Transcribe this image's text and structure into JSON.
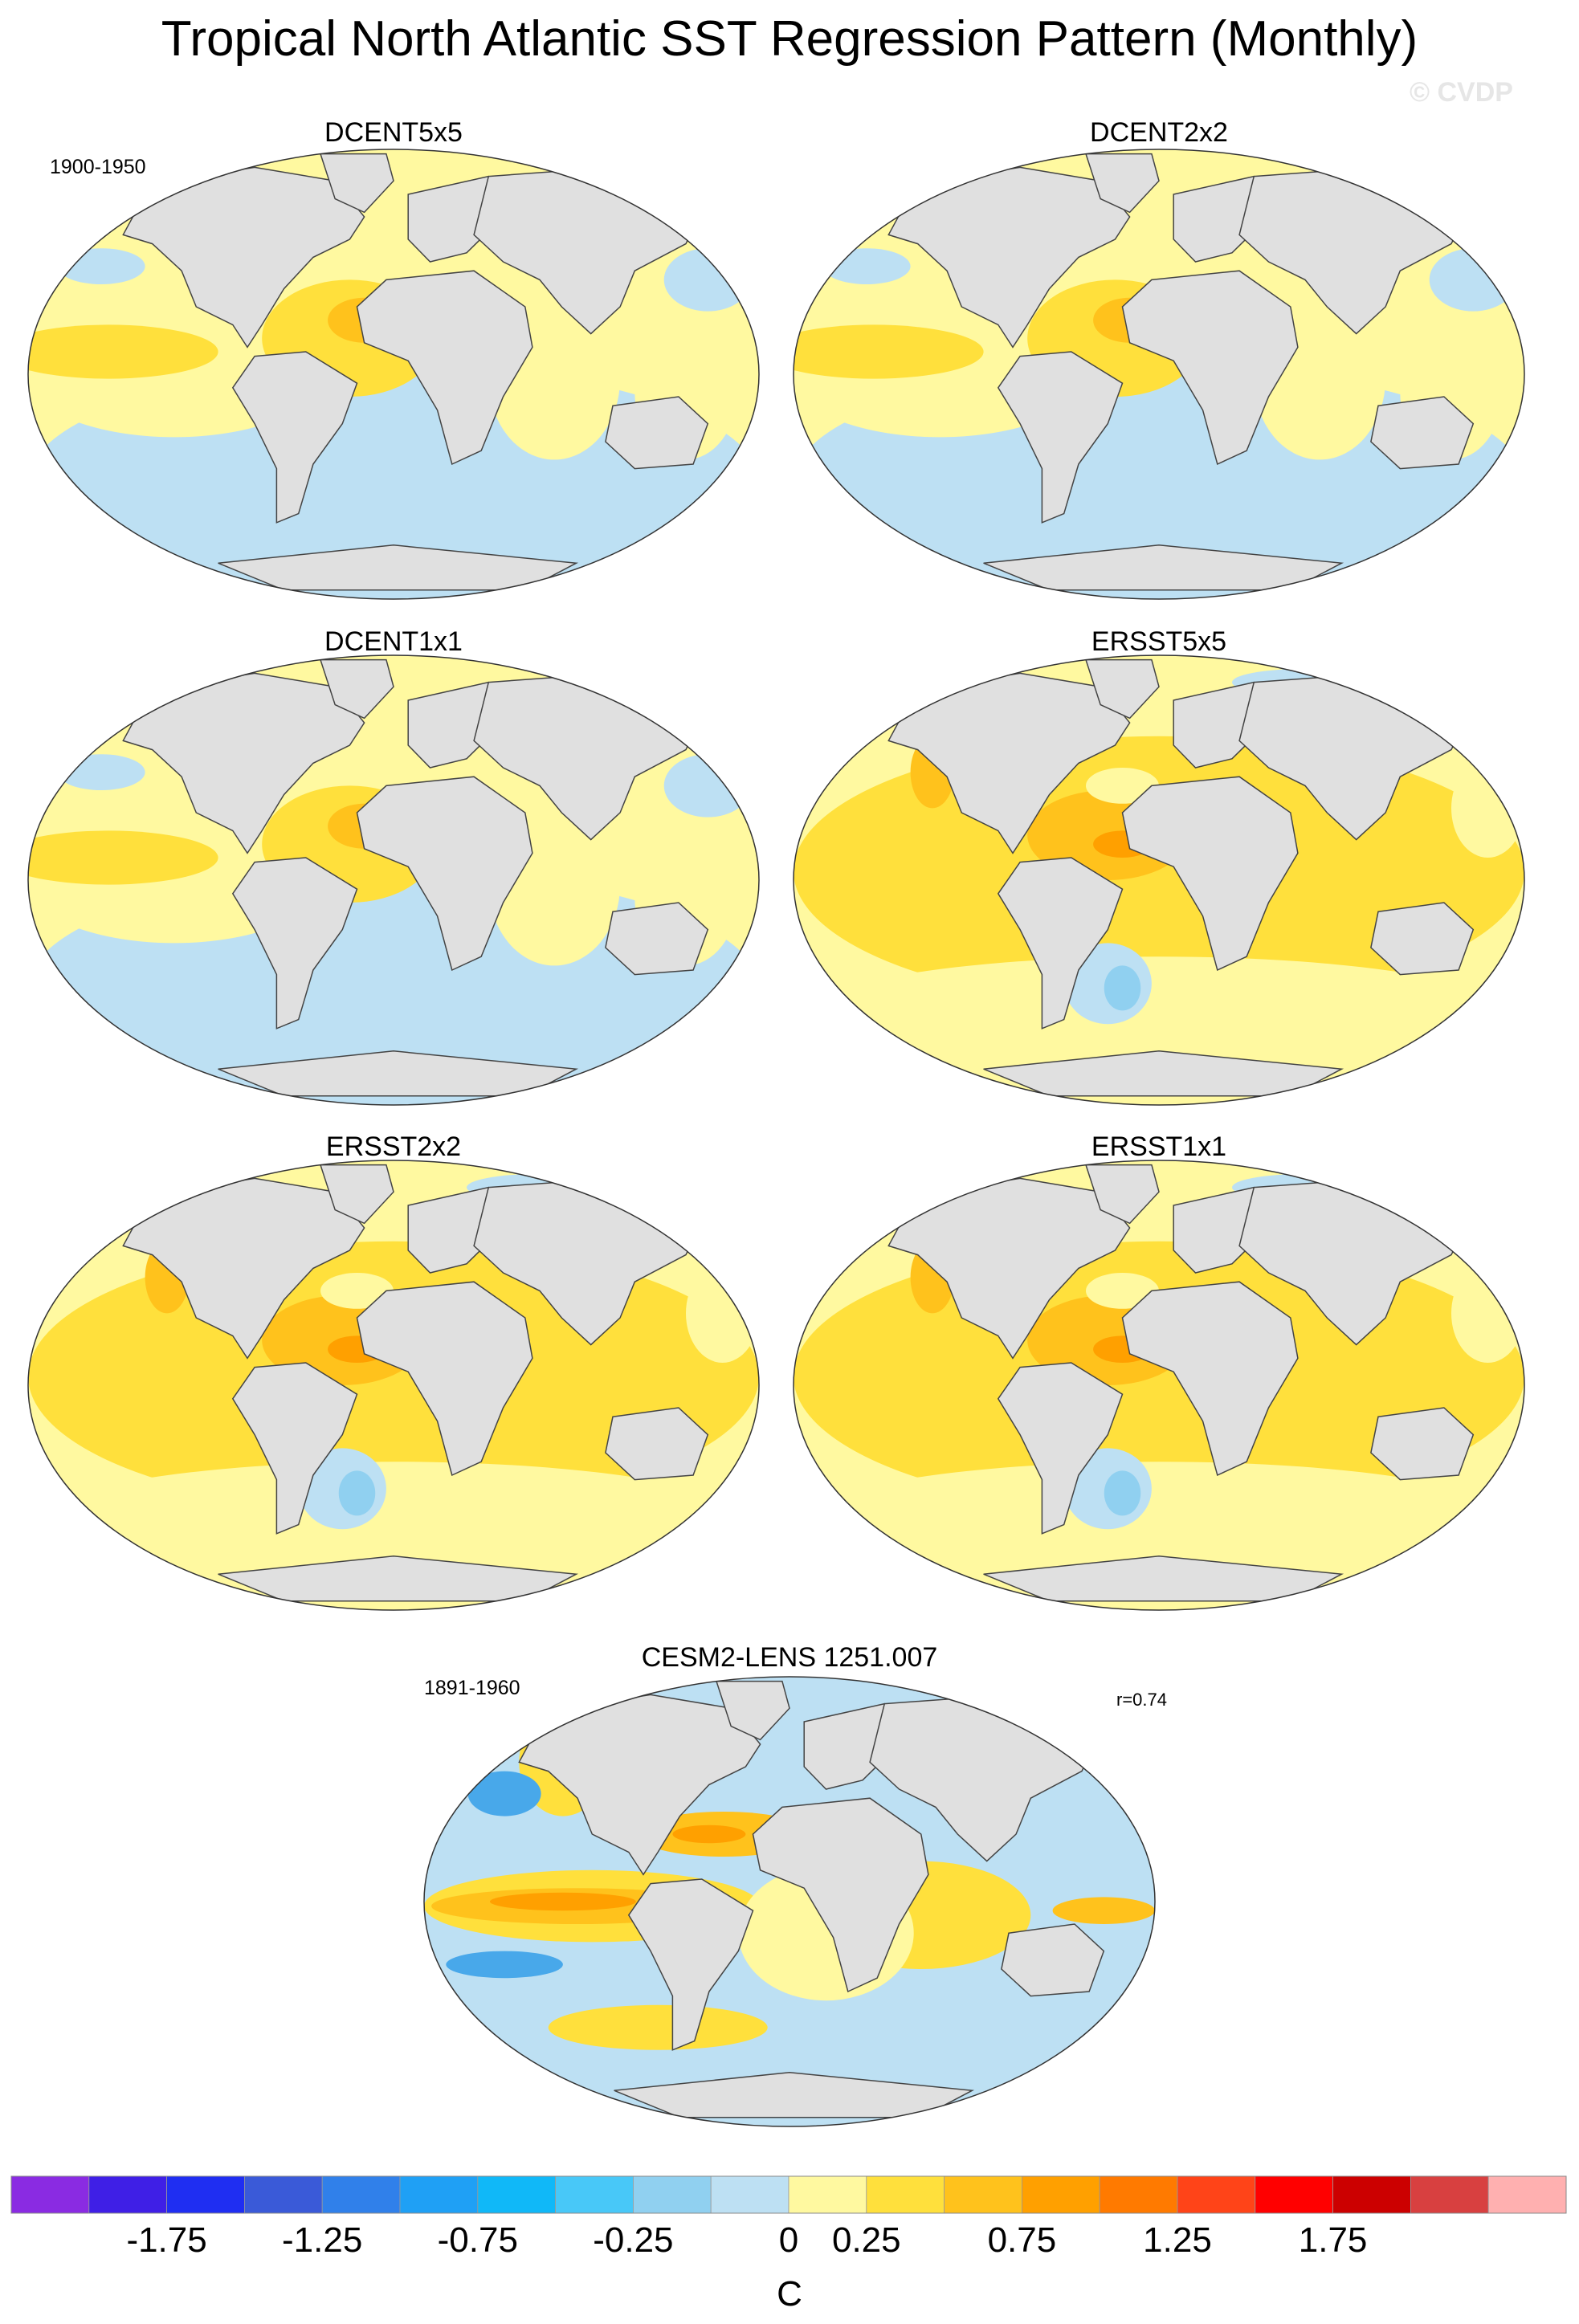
{
  "title": "Tropical North Atlantic SST Regression Pattern (Monthly)",
  "watermark": "© CVDP",
  "panels": [
    {
      "name": "DCENT5x5",
      "period": "1900-1950",
      "r": "",
      "regime": "mixed-cool"
    },
    {
      "name": "DCENT2x2",
      "period": "",
      "r": "",
      "regime": "mixed-cool"
    },
    {
      "name": "DCENT1x1",
      "period": "",
      "r": "",
      "regime": "mixed-cool"
    },
    {
      "name": "ERSST5x5",
      "period": "",
      "r": "",
      "regime": "warm"
    },
    {
      "name": "ERSST2x2",
      "period": "",
      "r": "",
      "regime": "warm"
    },
    {
      "name": "ERSST1x1",
      "period": "",
      "r": "",
      "regime": "warm"
    },
    {
      "name": "CESM2-LENS 1251.007",
      "period": "1891-1960",
      "r": "r=0.74",
      "regime": "model"
    }
  ],
  "colorbar": {
    "units": "C",
    "tick_labels": [
      "-1.75",
      "-1.25",
      "-0.75",
      "-0.25",
      "0",
      "0.25",
      "0.75",
      "1.25",
      "1.75"
    ],
    "colors": [
      "#8a2be2",
      "#3f1fe6",
      "#1f2ef2",
      "#3a5ad8",
      "#3080ea",
      "#1fa0f5",
      "#10b8f8",
      "#48c8f8",
      "#90d0f0",
      "#bde0f3",
      "#fff9a0",
      "#ffe03c",
      "#ffc21c",
      "#ffa000",
      "#ff7a00",
      "#ff4418",
      "#ff0000",
      "#cc0000",
      "#d84040",
      "#ffb0b0"
    ]
  },
  "palette": {
    "land": "#e0e0e0",
    "coast": "#444444",
    "cool": "#bde0f3",
    "cool_strong": "#90d0f0",
    "cool_stronger": "#48a8ea",
    "warm_weak": "#fff9a0",
    "warm": "#ffe03c",
    "warm_strong": "#ffc21c",
    "warm_stronger": "#ffa000"
  }
}
